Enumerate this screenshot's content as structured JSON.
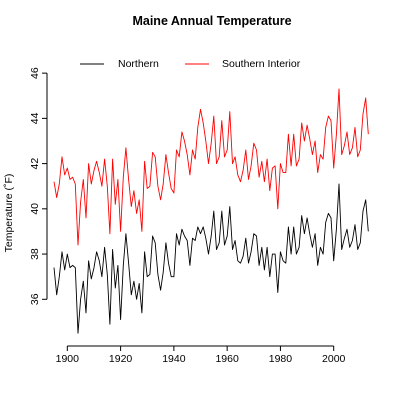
{
  "chart_data": {
    "type": "line",
    "title": "Maine Annual Temperature",
    "xlabel": "",
    "ylabel": "Temperature (˚F)",
    "xlim": [
      1895,
      2014
    ],
    "ylim": [
      34.2,
      47.2
    ],
    "x_ticks": [
      1900,
      1920,
      1940,
      1960,
      1980,
      2000
    ],
    "y_ticks": [
      36,
      38,
      40,
      42,
      44,
      46
    ],
    "grid": false,
    "legend_position": "top",
    "series": [
      {
        "name": "Northern",
        "color": "#000000",
        "x": [
          1895,
          1896,
          1897,
          1898,
          1899,
          1900,
          1901,
          1902,
          1903,
          1904,
          1905,
          1906,
          1907,
          1908,
          1909,
          1910,
          1911,
          1912,
          1913,
          1914,
          1915,
          1916,
          1917,
          1918,
          1919,
          1920,
          1921,
          1922,
          1923,
          1924,
          1925,
          1926,
          1927,
          1928,
          1929,
          1930,
          1931,
          1932,
          1933,
          1934,
          1935,
          1936,
          1937,
          1938,
          1939,
          1940,
          1941,
          1942,
          1943,
          1944,
          1945,
          1946,
          1947,
          1948,
          1949,
          1950,
          1951,
          1952,
          1953,
          1954,
          1955,
          1956,
          1957,
          1958,
          1959,
          1960,
          1961,
          1962,
          1963,
          1964,
          1965,
          1966,
          1967,
          1968,
          1969,
          1970,
          1971,
          1972,
          1973,
          1974,
          1975,
          1976,
          1977,
          1978,
          1979,
          1980,
          1981,
          1982,
          1983,
          1984,
          1985,
          1986,
          1987,
          1988,
          1989,
          1990,
          1991,
          1992,
          1993,
          1994,
          1995,
          1996,
          1997,
          1998,
          1999,
          2000,
          2001,
          2002,
          2003,
          2004,
          2005,
          2006,
          2007,
          2008,
          2009,
          2010,
          2011,
          2012,
          2013
        ],
        "values": [
          37.4,
          36.2,
          37.0,
          38.1,
          37.3,
          38.0,
          37.4,
          37.5,
          37.4,
          34.5,
          36.0,
          36.8,
          35.4,
          37.7,
          36.9,
          37.4,
          38.1,
          37.7,
          37.0,
          38.3,
          37.1,
          34.9,
          38.2,
          36.5,
          37.5,
          35.1,
          37.5,
          38.9,
          37.6,
          36.2,
          36.8,
          36.0,
          36.7,
          35.4,
          38.1,
          37.0,
          37.1,
          38.8,
          38.5,
          37.1,
          36.4,
          37.2,
          38.5,
          37.6,
          37.0,
          37.0,
          38.9,
          38.4,
          39.1,
          38.8,
          38.6,
          37.5,
          38.7,
          38.6,
          39.2,
          38.9,
          39.2,
          38.7,
          38.0,
          38.8,
          39.9,
          38.2,
          38.5,
          39.9,
          38.4,
          38.8,
          40.1,
          38.2,
          38.6,
          37.7,
          37.6,
          37.9,
          38.7,
          37.6,
          38.1,
          38.9,
          38.8,
          37.5,
          38.3,
          37.3,
          38.3,
          37.0,
          38.0,
          38.0,
          36.3,
          38.1,
          37.7,
          37.6,
          39.2,
          38.0,
          39.2,
          38.0,
          38.3,
          39.7,
          38.9,
          39.6,
          38.9,
          38.3,
          38.9,
          37.5,
          38.3,
          38.0,
          39.4,
          39.8,
          39.6,
          37.7,
          39.1,
          41.1,
          38.2,
          38.7,
          39.1,
          38.3,
          38.6,
          39.3,
          38.2,
          38.5,
          39.9,
          40.4,
          39.0
        ]
      },
      {
        "name": "Southern Interior",
        "color": "#ff0000",
        "x": [
          1895,
          1896,
          1897,
          1898,
          1899,
          1900,
          1901,
          1902,
          1903,
          1904,
          1905,
          1906,
          1907,
          1908,
          1909,
          1910,
          1911,
          1912,
          1913,
          1914,
          1915,
          1916,
          1917,
          1918,
          1919,
          1920,
          1921,
          1922,
          1923,
          1924,
          1925,
          1926,
          1927,
          1928,
          1929,
          1930,
          1931,
          1932,
          1933,
          1934,
          1935,
          1936,
          1937,
          1938,
          1939,
          1940,
          1941,
          1942,
          1943,
          1944,
          1945,
          1946,
          1947,
          1948,
          1949,
          1950,
          1951,
          1952,
          1953,
          1954,
          1955,
          1956,
          1957,
          1958,
          1959,
          1960,
          1961,
          1962,
          1963,
          1964,
          1965,
          1966,
          1967,
          1968,
          1969,
          1970,
          1971,
          1972,
          1973,
          1974,
          1975,
          1976,
          1977,
          1978,
          1979,
          1980,
          1981,
          1982,
          1983,
          1984,
          1985,
          1986,
          1987,
          1988,
          1989,
          1990,
          1991,
          1992,
          1993,
          1994,
          1995,
          1996,
          1997,
          1998,
          1999,
          2000,
          2001,
          2002,
          2003,
          2004,
          2005,
          2006,
          2007,
          2008,
          2009,
          2010,
          2011,
          2012,
          2013
        ],
        "values": [
          41.2,
          40.5,
          41.1,
          42.3,
          41.5,
          41.8,
          41.3,
          41.4,
          41.1,
          38.4,
          40.3,
          41.3,
          39.6,
          42.0,
          41.1,
          41.7,
          42.1,
          41.6,
          41.0,
          42.2,
          41.0,
          38.9,
          42.2,
          40.2,
          41.3,
          39.0,
          41.4,
          42.7,
          41.3,
          40.1,
          40.8,
          39.8,
          40.4,
          39.0,
          42.1,
          40.9,
          41.0,
          42.5,
          42.3,
          41.0,
          40.4,
          41.1,
          42.4,
          41.6,
          40.9,
          40.7,
          42.6,
          42.3,
          43.4,
          43.0,
          42.4,
          41.5,
          42.6,
          42.2,
          43.6,
          44.4,
          43.8,
          43.0,
          42.0,
          42.9,
          44.1,
          42.0,
          42.3,
          43.9,
          42.3,
          42.6,
          44.3,
          42.0,
          42.3,
          41.5,
          41.2,
          41.7,
          42.6,
          41.3,
          41.9,
          42.9,
          42.6,
          41.4,
          42.1,
          41.2,
          42.2,
          40.8,
          41.8,
          41.9,
          40.0,
          42.0,
          41.6,
          41.6,
          43.3,
          41.9,
          43.3,
          41.9,
          42.2,
          43.8,
          43.0,
          43.7,
          43.1,
          42.4,
          43.0,
          41.6,
          42.4,
          42.2,
          43.6,
          44.1,
          43.9,
          41.8,
          43.3,
          45.3,
          42.4,
          42.8,
          43.4,
          42.4,
          42.7,
          43.6,
          42.3,
          42.6,
          44.2,
          44.9,
          43.3
        ]
      }
    ]
  }
}
